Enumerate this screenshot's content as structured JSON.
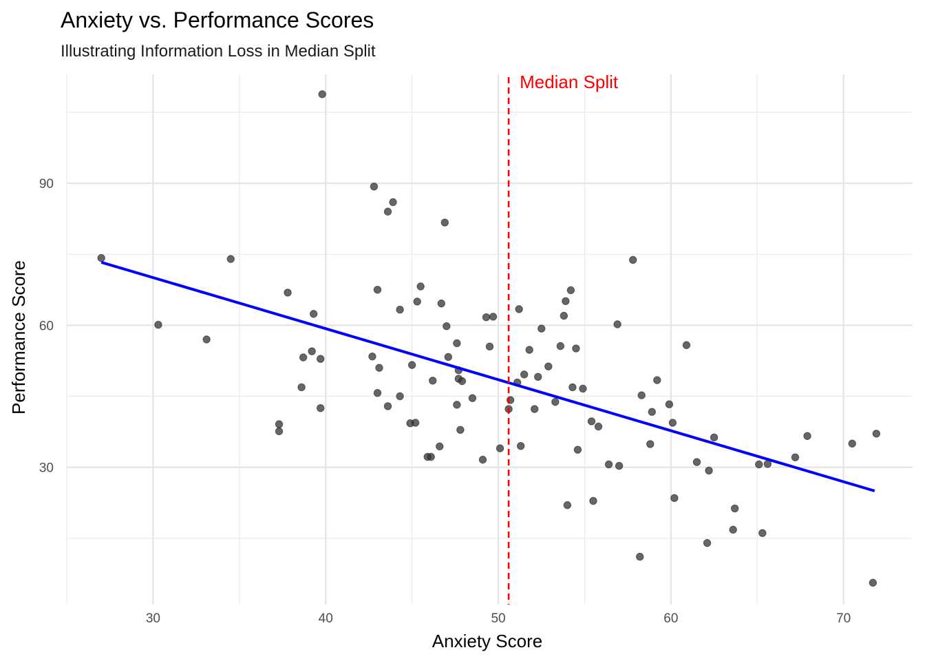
{
  "chart_data": {
    "type": "scatter",
    "title": "Anxiety vs. Performance Scores",
    "subtitle": "Illustrating Information Loss in Median Split",
    "xlabel": "Anxiety Score",
    "ylabel": "Performance Score",
    "xlim": [
      25,
      74
    ],
    "ylim": [
      1,
      113
    ],
    "x_ticks": [
      30,
      40,
      50,
      60,
      70
    ],
    "y_ticks": [
      30,
      60,
      90
    ],
    "grid": true,
    "theme": "minimal",
    "point_color": "#333333",
    "trend_line": {
      "x": [
        27.0,
        71.8
      ],
      "y": [
        73.3,
        25.0
      ],
      "color": "#0000ff"
    },
    "median_split": {
      "x": 50.6,
      "label": "Median Split",
      "color": "#ff0000"
    },
    "points": [
      {
        "x": 27.0,
        "y": 74.2
      },
      {
        "x": 30.3,
        "y": 60.1
      },
      {
        "x": 33.1,
        "y": 57.0
      },
      {
        "x": 34.5,
        "y": 74.0
      },
      {
        "x": 37.3,
        "y": 39.1
      },
      {
        "x": 37.3,
        "y": 37.6
      },
      {
        "x": 37.8,
        "y": 66.9
      },
      {
        "x": 38.6,
        "y": 46.9
      },
      {
        "x": 38.7,
        "y": 53.2
      },
      {
        "x": 39.2,
        "y": 54.5
      },
      {
        "x": 39.3,
        "y": 62.4
      },
      {
        "x": 39.7,
        "y": 52.9
      },
      {
        "x": 39.7,
        "y": 42.5
      },
      {
        "x": 39.8,
        "y": 108.8
      },
      {
        "x": 42.7,
        "y": 53.4
      },
      {
        "x": 42.8,
        "y": 89.3
      },
      {
        "x": 43.0,
        "y": 67.5
      },
      {
        "x": 43.0,
        "y": 45.7
      },
      {
        "x": 43.1,
        "y": 51.0
      },
      {
        "x": 43.6,
        "y": 84.0
      },
      {
        "x": 43.6,
        "y": 42.9
      },
      {
        "x": 43.9,
        "y": 86.0
      },
      {
        "x": 44.3,
        "y": 63.3
      },
      {
        "x": 44.3,
        "y": 45.0
      },
      {
        "x": 44.9,
        "y": 39.3
      },
      {
        "x": 45.0,
        "y": 51.6
      },
      {
        "x": 45.2,
        "y": 39.4
      },
      {
        "x": 45.3,
        "y": 65.0
      },
      {
        "x": 45.5,
        "y": 68.2
      },
      {
        "x": 45.9,
        "y": 32.2
      },
      {
        "x": 46.2,
        "y": 48.3
      },
      {
        "x": 46.1,
        "y": 32.2
      },
      {
        "x": 46.6,
        "y": 34.4
      },
      {
        "x": 46.7,
        "y": 64.6
      },
      {
        "x": 46.9,
        "y": 81.7
      },
      {
        "x": 47.0,
        "y": 59.8
      },
      {
        "x": 47.1,
        "y": 53.3
      },
      {
        "x": 47.6,
        "y": 43.2
      },
      {
        "x": 47.6,
        "y": 56.2
      },
      {
        "x": 47.7,
        "y": 50.5
      },
      {
        "x": 47.7,
        "y": 48.7
      },
      {
        "x": 47.8,
        "y": 37.9
      },
      {
        "x": 47.9,
        "y": 48.2
      },
      {
        "x": 48.5,
        "y": 44.6
      },
      {
        "x": 49.1,
        "y": 31.6
      },
      {
        "x": 49.3,
        "y": 61.7
      },
      {
        "x": 49.5,
        "y": 55.5
      },
      {
        "x": 49.7,
        "y": 61.8
      },
      {
        "x": 50.1,
        "y": 34.0
      },
      {
        "x": 50.6,
        "y": 42.3
      },
      {
        "x": 50.7,
        "y": 44.2
      },
      {
        "x": 51.1,
        "y": 47.9
      },
      {
        "x": 51.2,
        "y": 63.4
      },
      {
        "x": 51.3,
        "y": 34.5
      },
      {
        "x": 51.5,
        "y": 49.6
      },
      {
        "x": 51.8,
        "y": 54.8
      },
      {
        "x": 52.1,
        "y": 42.3
      },
      {
        "x": 52.3,
        "y": 49.1
      },
      {
        "x": 52.5,
        "y": 59.3
      },
      {
        "x": 52.9,
        "y": 51.3
      },
      {
        "x": 53.3,
        "y": 43.8
      },
      {
        "x": 53.6,
        "y": 55.6
      },
      {
        "x": 53.8,
        "y": 62.0
      },
      {
        "x": 53.9,
        "y": 65.1
      },
      {
        "x": 54.0,
        "y": 22.0
      },
      {
        "x": 54.2,
        "y": 67.4
      },
      {
        "x": 54.3,
        "y": 46.9
      },
      {
        "x": 54.5,
        "y": 55.1
      },
      {
        "x": 54.6,
        "y": 33.7
      },
      {
        "x": 54.9,
        "y": 46.6
      },
      {
        "x": 55.4,
        "y": 39.7
      },
      {
        "x": 55.5,
        "y": 22.9
      },
      {
        "x": 55.8,
        "y": 38.6
      },
      {
        "x": 56.4,
        "y": 30.6
      },
      {
        "x": 56.9,
        "y": 60.2
      },
      {
        "x": 57.0,
        "y": 30.3
      },
      {
        "x": 57.8,
        "y": 73.8
      },
      {
        "x": 58.2,
        "y": 11.1
      },
      {
        "x": 58.3,
        "y": 45.2
      },
      {
        "x": 58.8,
        "y": 34.9
      },
      {
        "x": 58.9,
        "y": 41.7
      },
      {
        "x": 59.2,
        "y": 48.4
      },
      {
        "x": 59.9,
        "y": 43.3
      },
      {
        "x": 60.1,
        "y": 39.4
      },
      {
        "x": 60.2,
        "y": 23.5
      },
      {
        "x": 60.9,
        "y": 55.8
      },
      {
        "x": 61.5,
        "y": 31.1
      },
      {
        "x": 62.1,
        "y": 14.0
      },
      {
        "x": 62.2,
        "y": 29.3
      },
      {
        "x": 62.5,
        "y": 36.3
      },
      {
        "x": 63.6,
        "y": 16.8
      },
      {
        "x": 63.7,
        "y": 21.3
      },
      {
        "x": 65.1,
        "y": 30.6
      },
      {
        "x": 65.3,
        "y": 16.1
      },
      {
        "x": 65.6,
        "y": 30.7
      },
      {
        "x": 67.2,
        "y": 32.1
      },
      {
        "x": 67.9,
        "y": 36.6
      },
      {
        "x": 70.5,
        "y": 35.0
      },
      {
        "x": 71.7,
        "y": 5.6
      },
      {
        "x": 71.9,
        "y": 37.1
      }
    ]
  }
}
